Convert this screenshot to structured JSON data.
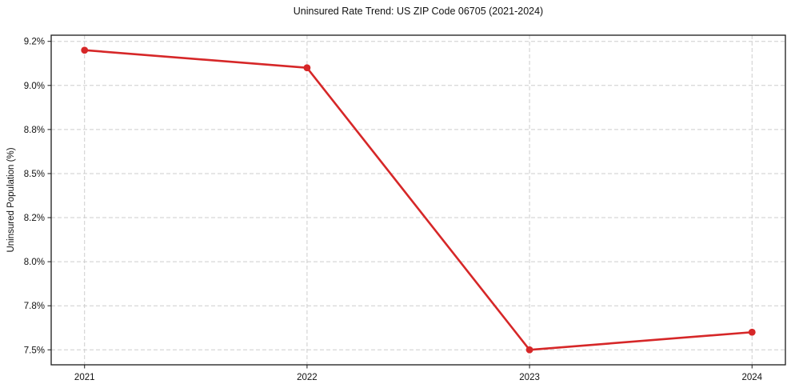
{
  "chart_data": {
    "type": "line",
    "title": "Uninsured Rate Trend: US ZIP Code 06705 (2021-2024)",
    "xlabel": "",
    "ylabel": "Uninsured Population (%)",
    "x": [
      2021,
      2022,
      2023,
      2024
    ],
    "x_tick_labels": [
      "2021",
      "2022",
      "2023",
      "2024"
    ],
    "values": [
      9.2,
      9.1,
      7.5,
      7.6
    ],
    "y_ticks": [
      {
        "value": 7.5,
        "label": "7.5%"
      },
      {
        "value": 7.75,
        "label": "7.8%"
      },
      {
        "value": 8.0,
        "label": "8.0%"
      },
      {
        "value": 8.25,
        "label": "8.2%"
      },
      {
        "value": 8.5,
        "label": "8.5%"
      },
      {
        "value": 8.75,
        "label": "8.8%"
      },
      {
        "value": 9.0,
        "label": "9.0%"
      },
      {
        "value": 9.25,
        "label": "9.2%"
      }
    ],
    "xlim": [
      2020.85,
      2024.15
    ],
    "ylim": [
      7.415,
      9.285
    ],
    "grid": "dashed-both-axes",
    "legend": "none",
    "line_color": "#d62728",
    "marker": "circle"
  }
}
